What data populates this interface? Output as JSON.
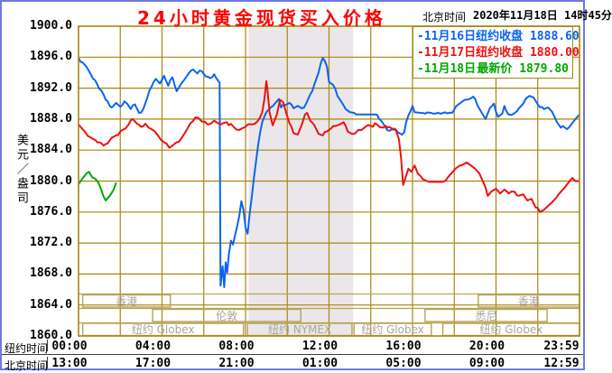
{
  "header": {
    "title": "24小时黄金现货买入价格",
    "title_color": "#ff0000",
    "timezone_label": "北京时间",
    "datetime": "2020年11月18日 14时45分"
  },
  "legend": {
    "items": [
      {
        "date": "11月16日",
        "name": "纽约收盘",
        "value": "1888.60",
        "color": "#0a64f0"
      },
      {
        "date": "11月17日",
        "name": "纽约收盘",
        "value": "1880.00",
        "color": "#ee1111"
      },
      {
        "date": "11月18日",
        "name": "最新价",
        "value": "1879.80",
        "color": "#00a800"
      }
    ]
  },
  "y_axis": {
    "unit_label": "美元／盎司",
    "tick_labels": [
      "1900.0",
      "1896.0",
      "1892.0",
      "1888.0",
      "1884.0",
      "1880.0",
      "1876.0",
      "1872.0",
      "1868.0",
      "1864.0",
      "1860.0"
    ]
  },
  "colors": {
    "grid": "#a8860d",
    "session_box": "#b6a352",
    "band": "#eae6ea",
    "frame": "#6e79e2"
  },
  "chart_data": {
    "type": "line",
    "title": "24小时黄金现货买入价格",
    "ylabel": "美元/盎司",
    "ylim": [
      1860,
      1900
    ],
    "y_tick_step": 4,
    "xlim_hours": [
      0,
      24
    ],
    "x_grid_step_hours": 2,
    "x_axis_rows": [
      {
        "label": "纽约时间",
        "ticks": [
          "00:00",
          "04:00",
          "08:00",
          "12:00",
          "16:00",
          "20:00",
          "23:59"
        ]
      },
      {
        "label": "北京时间",
        "ticks": [
          "13:00",
          "17:00",
          "21:00",
          "01:00",
          "05:00",
          "09:00",
          "12:59"
        ]
      }
    ],
    "highlight_band_hours": [
      8.15,
      13.15
    ],
    "session_bands": [
      {
        "lane": 0,
        "label": "香港",
        "from_h": 0.2,
        "to_h": 4.4
      },
      {
        "lane": 0,
        "label": "香港",
        "from_h": 19.15,
        "to_h": 24
      },
      {
        "lane": 1,
        "label": "伦敦",
        "from_h": 3.55,
        "to_h": 10.65
      },
      {
        "lane": 1,
        "label": "悉尼",
        "from_h": 16.6,
        "to_h": 22.45
      },
      {
        "lane": 2,
        "label": "纽约 Globex",
        "from_h": 0.2,
        "to_h": 7.9
      },
      {
        "lane": 2,
        "label": "纽约 NYMEX",
        "from_h": 8.1,
        "to_h": 13.1
      },
      {
        "lane": 2,
        "label": "纽约 Globex",
        "from_h": 13.2,
        "to_h": 16.9
      },
      {
        "lane": 2,
        "label": "纽约 Globex",
        "from_h": 17.45,
        "to_h": 24
      }
    ],
    "series": [
      {
        "name": "11月16日 纽约收盘",
        "color": "#0a64f0",
        "close": 1888.6,
        "points": [
          [
            0,
            1895.9
          ],
          [
            0.2,
            1895.3
          ],
          [
            0.5,
            1894.2
          ],
          [
            0.8,
            1893
          ],
          [
            1,
            1891.9
          ],
          [
            1.3,
            1890.5
          ],
          [
            1.6,
            1889.5
          ],
          [
            1.8,
            1890.1
          ],
          [
            2,
            1889.6
          ],
          [
            2.2,
            1890.3
          ],
          [
            2.5,
            1889.3
          ],
          [
            2.7,
            1889.9
          ],
          [
            2.9,
            1888.8
          ],
          [
            3.1,
            1889.3
          ],
          [
            3.3,
            1890.8
          ],
          [
            3.5,
            1892.2
          ],
          [
            3.7,
            1893.2
          ],
          [
            3.9,
            1892.6
          ],
          [
            4.1,
            1893.6
          ],
          [
            4.3,
            1892.3
          ],
          [
            4.5,
            1893.4
          ],
          [
            4.7,
            1891.6
          ],
          [
            4.9,
            1892.5
          ],
          [
            5.1,
            1893.2
          ],
          [
            5.3,
            1894
          ],
          [
            5.5,
            1894.4
          ],
          [
            5.7,
            1893.9
          ],
          [
            5.9,
            1894.2
          ],
          [
            6.1,
            1893.5
          ],
          [
            6.3,
            1893.3
          ],
          [
            6.5,
            1893.8
          ],
          [
            6.7,
            1892.9
          ],
          [
            6.76,
            1892.7
          ],
          [
            6.8,
            1866.5
          ],
          [
            6.9,
            1869
          ],
          [
            6.98,
            1866.3
          ],
          [
            7.05,
            1869.5
          ],
          [
            7.12,
            1868.2
          ],
          [
            7.2,
            1870.5
          ],
          [
            7.3,
            1872.3
          ],
          [
            7.4,
            1871.8
          ],
          [
            7.5,
            1873
          ],
          [
            7.6,
            1874.2
          ],
          [
            7.7,
            1875.5
          ],
          [
            7.8,
            1877.4
          ],
          [
            7.9,
            1876.3
          ],
          [
            8,
            1874
          ],
          [
            8.1,
            1873.2
          ],
          [
            8.2,
            1875.8
          ],
          [
            8.3,
            1877.9
          ],
          [
            8.4,
            1880.4
          ],
          [
            8.5,
            1882.5
          ],
          [
            8.6,
            1884.6
          ],
          [
            8.7,
            1886.3
          ],
          [
            8.8,
            1887.6
          ],
          [
            8.9,
            1888.3
          ],
          [
            9,
            1888.9
          ],
          [
            9.2,
            1889.5
          ],
          [
            9.4,
            1890
          ],
          [
            9.6,
            1890.6
          ],
          [
            9.7,
            1889.5
          ],
          [
            9.9,
            1889.8
          ],
          [
            10.1,
            1890.1
          ],
          [
            10.3,
            1889.4
          ],
          [
            10.5,
            1889.7
          ],
          [
            10.7,
            1889.4
          ],
          [
            10.9,
            1890
          ],
          [
            11.1,
            1891.2
          ],
          [
            11.3,
            1892.5
          ],
          [
            11.5,
            1894
          ],
          [
            11.6,
            1895.2
          ],
          [
            11.7,
            1895.9
          ],
          [
            11.8,
            1895.5
          ],
          [
            11.9,
            1894.8
          ],
          [
            12,
            1892.8
          ],
          [
            12.2,
            1892.4
          ],
          [
            12.4,
            1891
          ],
          [
            12.6,
            1890.2
          ],
          [
            12.8,
            1889.3
          ],
          [
            13,
            1888.9
          ],
          [
            13.2,
            1888.8
          ],
          [
            13.5,
            1888.6
          ],
          [
            14.2,
            1888.6
          ],
          [
            14.5,
            1887.8
          ],
          [
            14.7,
            1887
          ],
          [
            14.9,
            1886.5
          ],
          [
            15.1,
            1886.8
          ],
          [
            15.3,
            1886.3
          ],
          [
            15.5,
            1886
          ],
          [
            15.6,
            1886.3
          ],
          [
            15.7,
            1887.7
          ],
          [
            15.9,
            1889
          ],
          [
            16,
            1889.7
          ],
          [
            16.1,
            1888.9
          ],
          [
            16.4,
            1888.8
          ],
          [
            17,
            1888.7
          ],
          [
            17.9,
            1888.8
          ],
          [
            18.1,
            1889.7
          ],
          [
            18.3,
            1890.1
          ],
          [
            18.5,
            1890.5
          ],
          [
            18.9,
            1890.9
          ],
          [
            19,
            1890.6
          ],
          [
            19.3,
            1888.9
          ],
          [
            19.5,
            1888
          ],
          [
            19.7,
            1889.4
          ],
          [
            19.9,
            1890
          ],
          [
            20.1,
            1888.3
          ],
          [
            20.3,
            1888.7
          ],
          [
            20.4,
            1889.7
          ],
          [
            20.6,
            1888.6
          ],
          [
            20.9,
            1888.8
          ],
          [
            21.1,
            1889.4
          ],
          [
            21.3,
            1890
          ],
          [
            21.6,
            1891
          ],
          [
            21.8,
            1890.8
          ],
          [
            22,
            1889.9
          ],
          [
            22.3,
            1889.3
          ],
          [
            22.5,
            1889.5
          ],
          [
            22.7,
            1888.9
          ],
          [
            22.9,
            1887.7
          ],
          [
            23.1,
            1886.9
          ],
          [
            23.2,
            1887.1
          ],
          [
            23.4,
            1886.7
          ],
          [
            23.6,
            1887.3
          ],
          [
            23.8,
            1888
          ],
          [
            24,
            1888.6
          ]
        ]
      },
      {
        "name": "11月17日 纽约收盘",
        "color": "#ee1111",
        "close": 1880.0,
        "points": [
          [
            0,
            1887.3
          ],
          [
            0.3,
            1886.4
          ],
          [
            0.6,
            1885.6
          ],
          [
            0.9,
            1885
          ],
          [
            1.2,
            1884.6
          ],
          [
            1.5,
            1885.3
          ],
          [
            1.8,
            1885.9
          ],
          [
            2.1,
            1886.6
          ],
          [
            2.4,
            1887.3
          ],
          [
            2.6,
            1888
          ],
          [
            2.8,
            1887.4
          ],
          [
            3,
            1887
          ],
          [
            3.2,
            1887.4
          ],
          [
            3.5,
            1886.7
          ],
          [
            3.8,
            1885.9
          ],
          [
            4.1,
            1885
          ],
          [
            4.35,
            1884.3
          ],
          [
            4.6,
            1884.8
          ],
          [
            4.9,
            1885.4
          ],
          [
            5.2,
            1886.7
          ],
          [
            5.5,
            1887.8
          ],
          [
            5.7,
            1888.2
          ],
          [
            5.9,
            1887.7
          ],
          [
            6.2,
            1887.3
          ],
          [
            6.5,
            1887.8
          ],
          [
            6.8,
            1887.3
          ],
          [
            7.1,
            1887.6
          ],
          [
            7.4,
            1887.1
          ],
          [
            7.7,
            1886.6
          ],
          [
            8,
            1887
          ],
          [
            8.3,
            1887.3
          ],
          [
            8.6,
            1887.8
          ],
          [
            8.8,
            1888.9
          ],
          [
            8.9,
            1890.5
          ],
          [
            9,
            1892.9
          ],
          [
            9.05,
            1891.8
          ],
          [
            9.15,
            1888.9
          ],
          [
            9.3,
            1887.2
          ],
          [
            9.5,
            1888.6
          ],
          [
            9.65,
            1890.5
          ],
          [
            9.8,
            1890.2
          ],
          [
            9.95,
            1888.8
          ],
          [
            10.1,
            1887.5
          ],
          [
            10.3,
            1886.2
          ],
          [
            10.5,
            1886
          ],
          [
            10.7,
            1887.3
          ],
          [
            10.85,
            1888.6
          ],
          [
            10.95,
            1888.8
          ],
          [
            11.1,
            1887.8
          ],
          [
            11.3,
            1887.2
          ],
          [
            11.5,
            1886.1
          ],
          [
            11.7,
            1885.9
          ],
          [
            11.9,
            1886.4
          ],
          [
            12.1,
            1886.8
          ],
          [
            12.3,
            1887.1
          ],
          [
            12.5,
            1887.3
          ],
          [
            12.7,
            1887.6
          ],
          [
            12.9,
            1886.4
          ],
          [
            13.1,
            1886.1
          ],
          [
            13.4,
            1886.6
          ],
          [
            13.7,
            1886.9
          ],
          [
            14,
            1887.1
          ],
          [
            14.3,
            1887.3
          ],
          [
            14.6,
            1886.9
          ],
          [
            14.9,
            1887
          ],
          [
            15.2,
            1886.6
          ],
          [
            15.35,
            1885.4
          ],
          [
            15.45,
            1883
          ],
          [
            15.55,
            1879.5
          ],
          [
            15.65,
            1880.3
          ],
          [
            15.8,
            1881.6
          ],
          [
            15.95,
            1881.2
          ],
          [
            16.1,
            1882
          ],
          [
            16.25,
            1881
          ],
          [
            16.4,
            1880.6
          ],
          [
            16.6,
            1880.1
          ],
          [
            16.8,
            1879.9
          ],
          [
            17.4,
            1879.9
          ],
          [
            17.7,
            1880.5
          ],
          [
            17.9,
            1881.1
          ],
          [
            18.1,
            1881.7
          ],
          [
            18.4,
            1882.1
          ],
          [
            18.6,
            1882.4
          ],
          [
            18.8,
            1882
          ],
          [
            19,
            1881.6
          ],
          [
            19.2,
            1881
          ],
          [
            19.4,
            1879.8
          ],
          [
            19.6,
            1878.1
          ],
          [
            19.8,
            1878.7
          ],
          [
            20,
            1879
          ],
          [
            20.2,
            1878.4
          ],
          [
            20.4,
            1878.9
          ],
          [
            20.6,
            1878.4
          ],
          [
            20.9,
            1878.6
          ],
          [
            21.1,
            1878.1
          ],
          [
            21.3,
            1878.3
          ],
          [
            21.5,
            1877.5
          ],
          [
            21.7,
            1877.7
          ],
          [
            21.9,
            1876.6
          ],
          [
            22.1,
            1876
          ],
          [
            22.3,
            1876.3
          ],
          [
            22.5,
            1876.8
          ],
          [
            22.7,
            1877.3
          ],
          [
            22.9,
            1877.9
          ],
          [
            23.1,
            1878.6
          ],
          [
            23.3,
            1879.2
          ],
          [
            23.5,
            1879.9
          ],
          [
            23.65,
            1880.4
          ],
          [
            23.8,
            1880
          ],
          [
            24,
            1880
          ]
        ]
      },
      {
        "name": "11月18日 最新价",
        "color": "#00a800",
        "latest": 1879.8,
        "points": [
          [
            0,
            1879.6
          ],
          [
            0.15,
            1880.2
          ],
          [
            0.3,
            1880.7
          ],
          [
            0.5,
            1881.2
          ],
          [
            0.65,
            1880.5
          ],
          [
            0.8,
            1880.3
          ],
          [
            0.95,
            1879.8
          ],
          [
            1.1,
            1878.8
          ],
          [
            1.2,
            1878
          ],
          [
            1.3,
            1877.5
          ],
          [
            1.4,
            1877.8
          ],
          [
            1.55,
            1878.3
          ],
          [
            1.7,
            1879
          ],
          [
            1.8,
            1879.8
          ]
        ]
      }
    ]
  }
}
